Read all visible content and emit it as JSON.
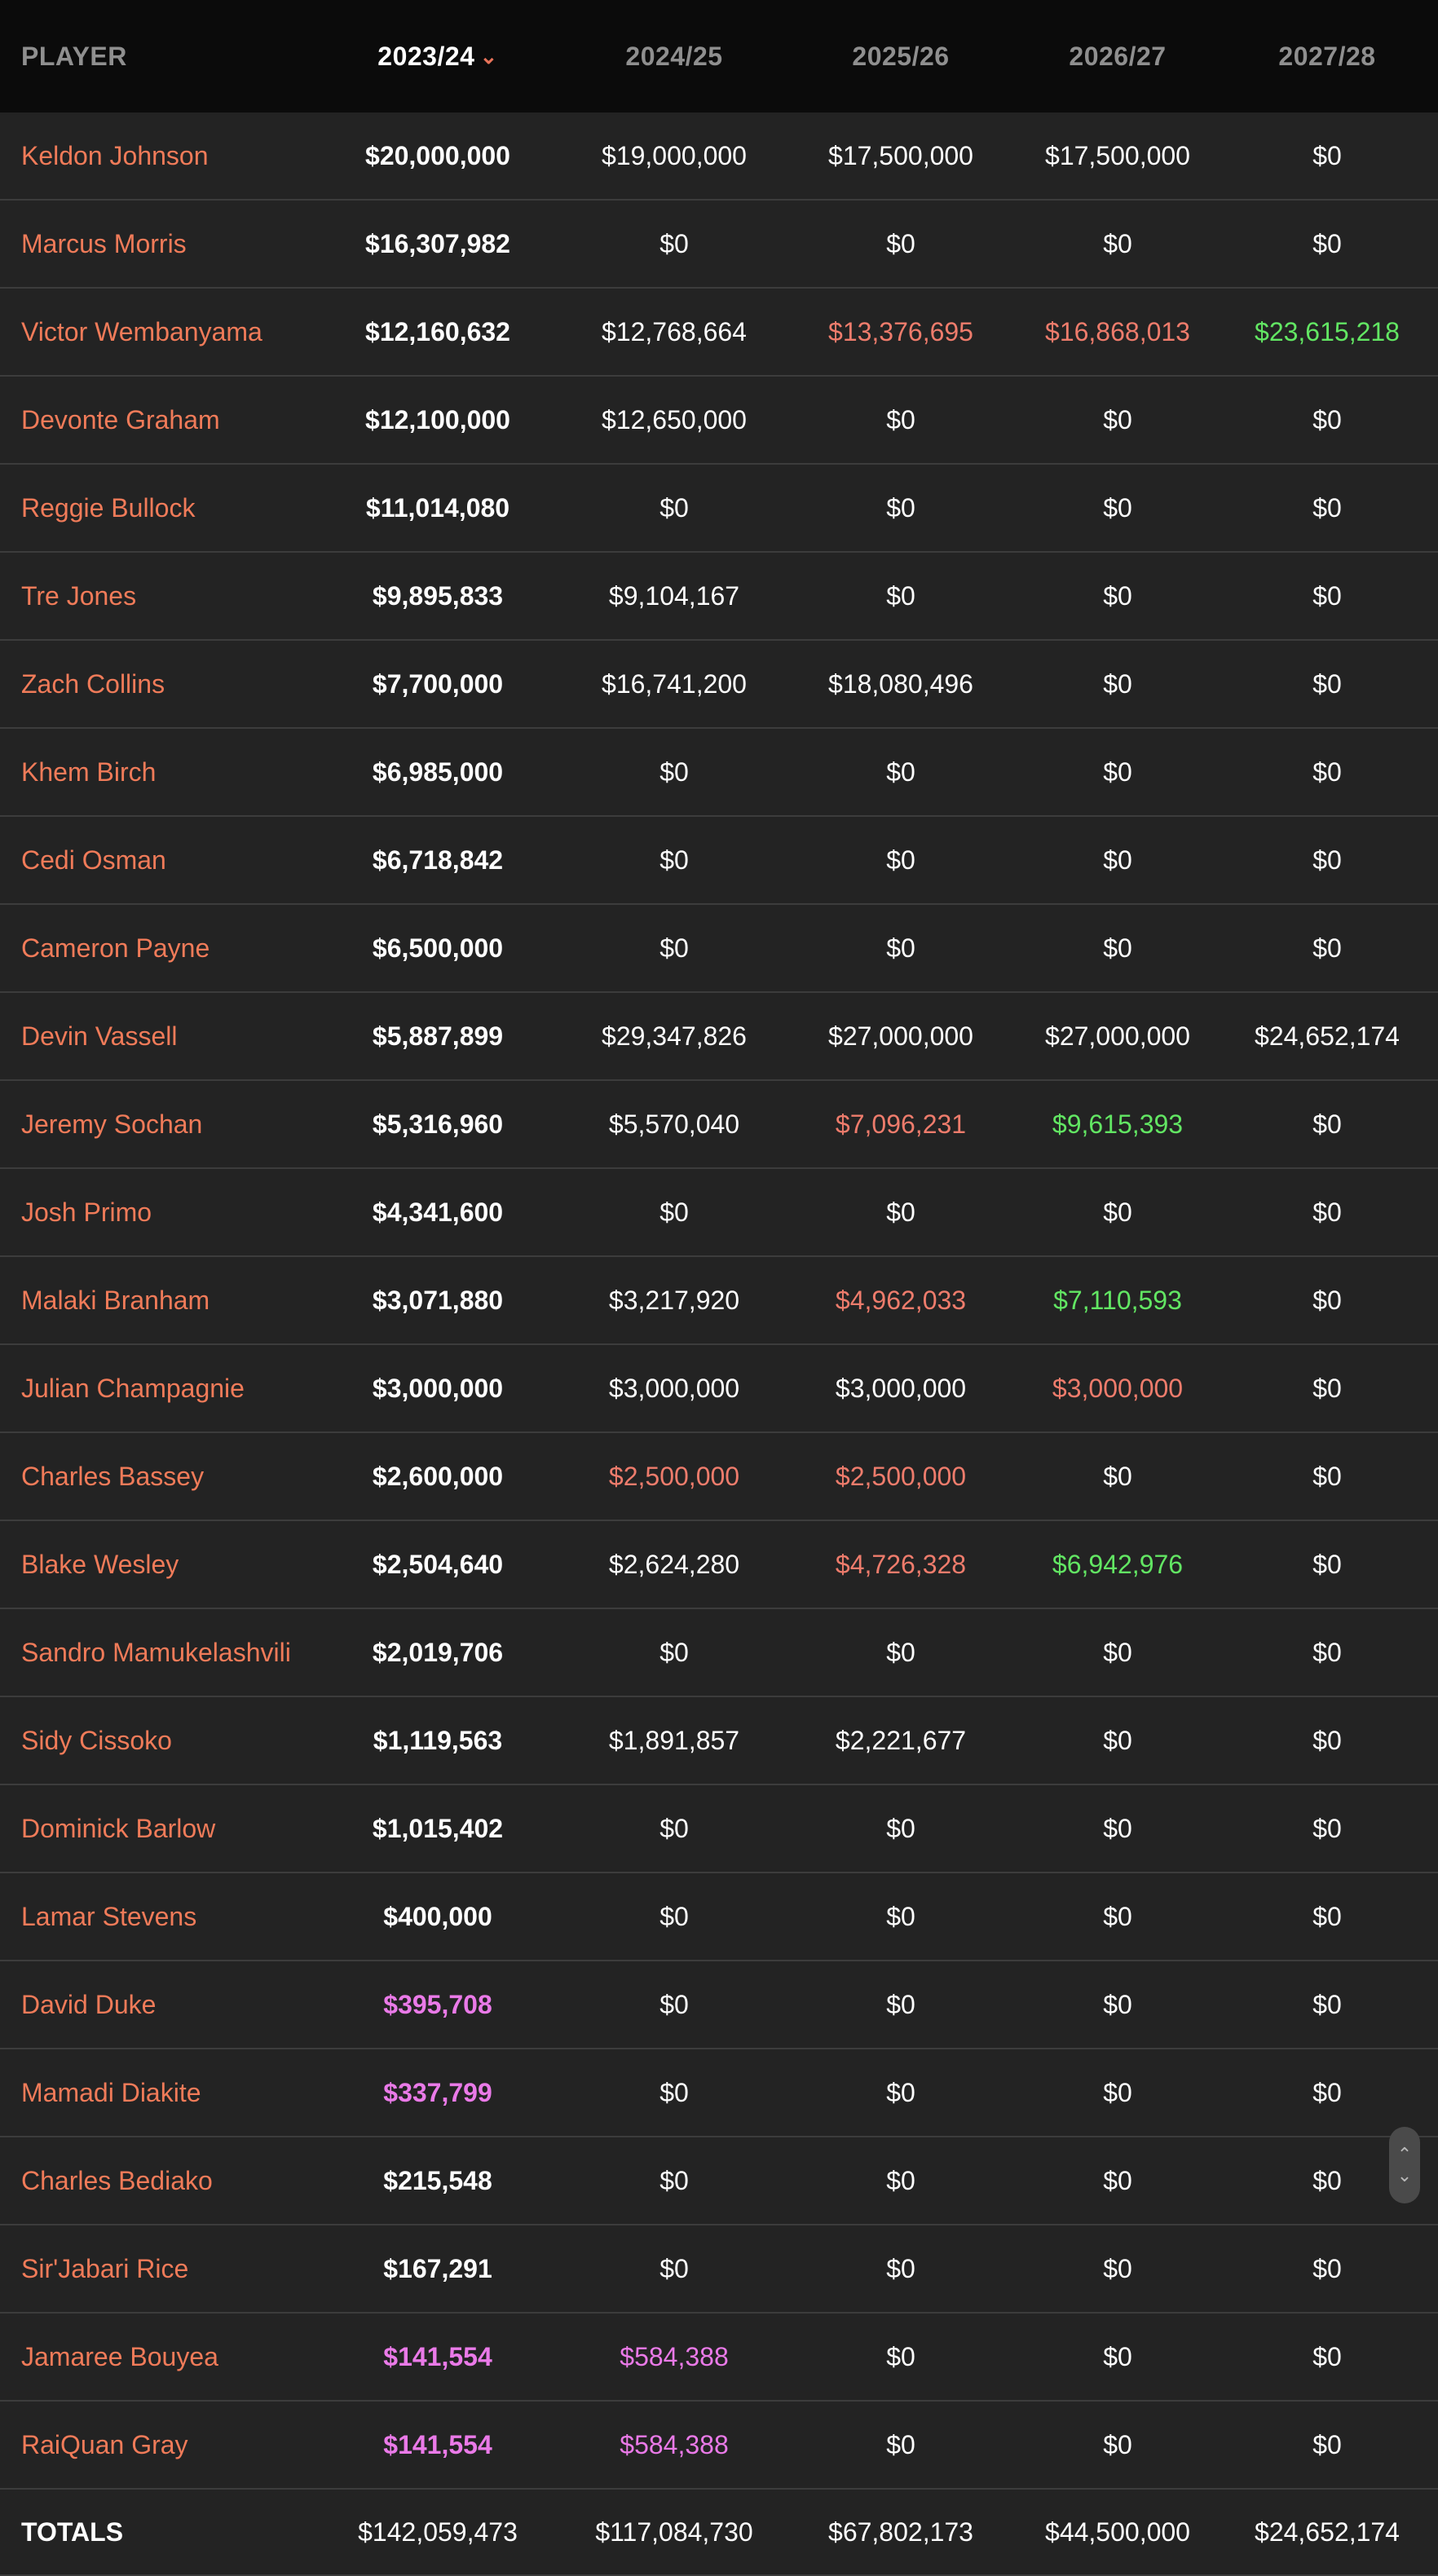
{
  "header": {
    "player": "PLAYER",
    "seasons": [
      "2023/24",
      "2024/25",
      "2025/26",
      "2026/27",
      "2027/28"
    ],
    "sorted_column": "2023/24",
    "sort_icon": "chevron-down-icon"
  },
  "colors": {
    "player_name": "#f07b59",
    "red_value": "#ee7c6c",
    "green_value": "#62e663",
    "pink_value": "#ea7ae8"
  },
  "rows": [
    {
      "player": "Keldon Johnson",
      "values": [
        "$20,000,000",
        "$19,000,000",
        "$17,500,000",
        "$17,500,000",
        "$0"
      ],
      "styles": [
        "",
        "",
        "",
        "",
        ""
      ]
    },
    {
      "player": "Marcus Morris",
      "values": [
        "$16,307,982",
        "$0",
        "$0",
        "$0",
        "$0"
      ],
      "styles": [
        "",
        "",
        "",
        "",
        ""
      ]
    },
    {
      "player": "Victor Wembanyama",
      "values": [
        "$12,160,632",
        "$12,768,664",
        "$13,376,695",
        "$16,868,013",
        "$23,615,218"
      ],
      "styles": [
        "",
        "",
        "red",
        "red",
        "green"
      ]
    },
    {
      "player": "Devonte Graham",
      "values": [
        "$12,100,000",
        "$12,650,000",
        "$0",
        "$0",
        "$0"
      ],
      "styles": [
        "",
        "",
        "",
        "",
        ""
      ]
    },
    {
      "player": "Reggie Bullock",
      "values": [
        "$11,014,080",
        "$0",
        "$0",
        "$0",
        "$0"
      ],
      "styles": [
        "",
        "",
        "",
        "",
        ""
      ]
    },
    {
      "player": "Tre Jones",
      "values": [
        "$9,895,833",
        "$9,104,167",
        "$0",
        "$0",
        "$0"
      ],
      "styles": [
        "",
        "",
        "",
        "",
        ""
      ]
    },
    {
      "player": "Zach Collins",
      "values": [
        "$7,700,000",
        "$16,741,200",
        "$18,080,496",
        "$0",
        "$0"
      ],
      "styles": [
        "",
        "",
        "",
        "",
        ""
      ]
    },
    {
      "player": "Khem Birch",
      "values": [
        "$6,985,000",
        "$0",
        "$0",
        "$0",
        "$0"
      ],
      "styles": [
        "",
        "",
        "",
        "",
        ""
      ]
    },
    {
      "player": "Cedi Osman",
      "values": [
        "$6,718,842",
        "$0",
        "$0",
        "$0",
        "$0"
      ],
      "styles": [
        "",
        "",
        "",
        "",
        ""
      ]
    },
    {
      "player": "Cameron Payne",
      "values": [
        "$6,500,000",
        "$0",
        "$0",
        "$0",
        "$0"
      ],
      "styles": [
        "",
        "",
        "",
        "",
        ""
      ]
    },
    {
      "player": "Devin Vassell",
      "values": [
        "$5,887,899",
        "$29,347,826",
        "$27,000,000",
        "$27,000,000",
        "$24,652,174"
      ],
      "styles": [
        "",
        "",
        "",
        "",
        ""
      ]
    },
    {
      "player": "Jeremy Sochan",
      "values": [
        "$5,316,960",
        "$5,570,040",
        "$7,096,231",
        "$9,615,393",
        "$0"
      ],
      "styles": [
        "",
        "",
        "red",
        "green",
        ""
      ]
    },
    {
      "player": "Josh Primo",
      "values": [
        "$4,341,600",
        "$0",
        "$0",
        "$0",
        "$0"
      ],
      "styles": [
        "",
        "",
        "",
        "",
        ""
      ]
    },
    {
      "player": "Malaki Branham",
      "values": [
        "$3,071,880",
        "$3,217,920",
        "$4,962,033",
        "$7,110,593",
        "$0"
      ],
      "styles": [
        "",
        "",
        "red",
        "green",
        ""
      ]
    },
    {
      "player": "Julian Champagnie",
      "values": [
        "$3,000,000",
        "$3,000,000",
        "$3,000,000",
        "$3,000,000",
        "$0"
      ],
      "styles": [
        "",
        "",
        "",
        "red",
        ""
      ]
    },
    {
      "player": "Charles Bassey",
      "values": [
        "$2,600,000",
        "$2,500,000",
        "$2,500,000",
        "$0",
        "$0"
      ],
      "styles": [
        "",
        "red",
        "red",
        "",
        ""
      ]
    },
    {
      "player": "Blake Wesley",
      "values": [
        "$2,504,640",
        "$2,624,280",
        "$4,726,328",
        "$6,942,976",
        "$0"
      ],
      "styles": [
        "",
        "",
        "red",
        "green",
        ""
      ]
    },
    {
      "player": "Sandro Mamukelashvili",
      "values": [
        "$2,019,706",
        "$0",
        "$0",
        "$0",
        "$0"
      ],
      "styles": [
        "",
        "",
        "",
        "",
        ""
      ]
    },
    {
      "player": "Sidy Cissoko",
      "values": [
        "$1,119,563",
        "$1,891,857",
        "$2,221,677",
        "$0",
        "$0"
      ],
      "styles": [
        "",
        "",
        "",
        "",
        ""
      ]
    },
    {
      "player": "Dominick Barlow",
      "values": [
        "$1,015,402",
        "$0",
        "$0",
        "$0",
        "$0"
      ],
      "styles": [
        "",
        "",
        "",
        "",
        ""
      ]
    },
    {
      "player": "Lamar Stevens",
      "values": [
        "$400,000",
        "$0",
        "$0",
        "$0",
        "$0"
      ],
      "styles": [
        "",
        "",
        "",
        "",
        ""
      ]
    },
    {
      "player": "David Duke",
      "values": [
        "$395,708",
        "$0",
        "$0",
        "$0",
        "$0"
      ],
      "styles": [
        "pink",
        "",
        "",
        "",
        ""
      ]
    },
    {
      "player": "Mamadi Diakite",
      "values": [
        "$337,799",
        "$0",
        "$0",
        "$0",
        "$0"
      ],
      "styles": [
        "pink",
        "",
        "",
        "",
        ""
      ]
    },
    {
      "player": "Charles Bediako",
      "values": [
        "$215,548",
        "$0",
        "$0",
        "$0",
        "$0"
      ],
      "styles": [
        "",
        "",
        "",
        "",
        ""
      ]
    },
    {
      "player": "Sir'Jabari Rice",
      "values": [
        "$167,291",
        "$0",
        "$0",
        "$0",
        "$0"
      ],
      "styles": [
        "",
        "",
        "",
        "",
        ""
      ]
    },
    {
      "player": "Jamaree Bouyea",
      "values": [
        "$141,554",
        "$584,388",
        "$0",
        "$0",
        "$0"
      ],
      "styles": [
        "pink",
        "pink",
        "",
        "",
        ""
      ]
    },
    {
      "player": "RaiQuan Gray",
      "values": [
        "$141,554",
        "$584,388",
        "$0",
        "$0",
        "$0"
      ],
      "styles": [
        "pink",
        "pink",
        "",
        "",
        ""
      ]
    }
  ],
  "totals": {
    "label": "TOTALS",
    "values": [
      "$142,059,473",
      "$117,084,730",
      "$67,802,173",
      "$44,500,000",
      "$24,652,174"
    ]
  },
  "scroll_control": {
    "up_icon": "chevron-up-icon",
    "down_icon": "chevron-down-icon"
  }
}
